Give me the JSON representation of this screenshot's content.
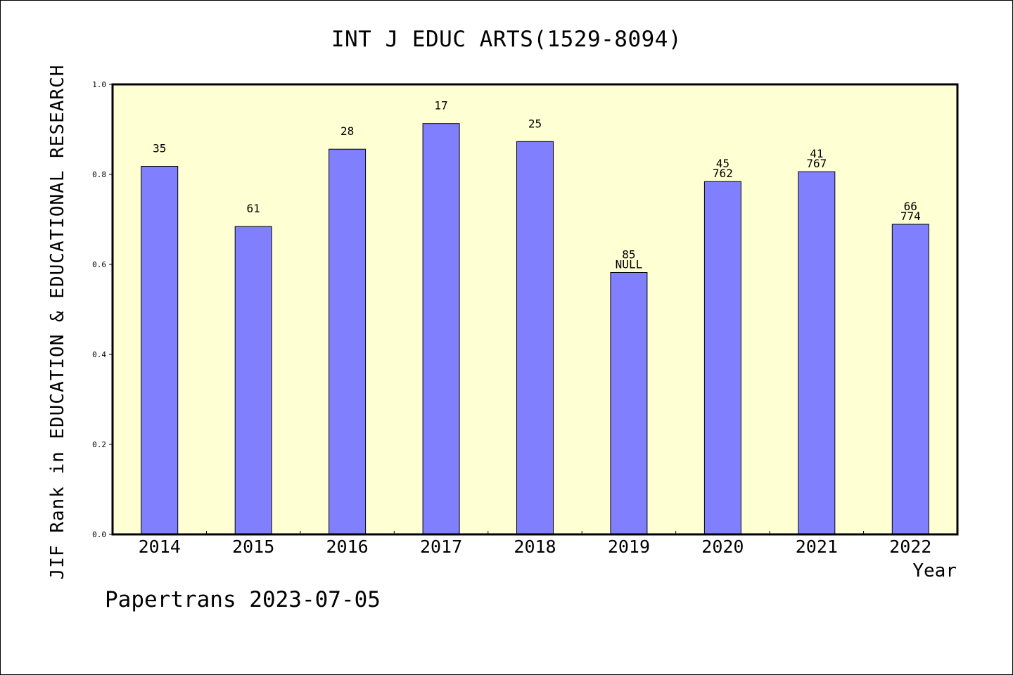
{
  "chart_data": {
    "type": "bar",
    "title": "INT J EDUC ARTS(1529-8094)",
    "xlabel": "Year",
    "ylabel": "JIF Rank in EDUCATION & EDUCATIONAL RESEARCH",
    "ylim": [
      0,
      1.0
    ],
    "yticks": [
      "0.0",
      "0.2",
      "0.4",
      "0.6",
      "0.8",
      "1.0"
    ],
    "categories": [
      "2014",
      "2015",
      "2016",
      "2017",
      "2018",
      "2019",
      "2020",
      "2021",
      "2022"
    ],
    "values": [
      0.818,
      0.684,
      0.856,
      0.913,
      0.873,
      0.582,
      0.784,
      0.806,
      0.689
    ],
    "top_labels": [
      "35",
      "61",
      "28",
      "17",
      "25",
      "85",
      "45",
      "41",
      "66"
    ],
    "second_labels": [
      "",
      "",
      "",
      "",
      "",
      "NULL",
      "762",
      "767",
      "774"
    ],
    "bar_color": "#8080ff",
    "plot_background": "#ffffd4",
    "grid": false
  },
  "footer": {
    "text": "Papertrans 2023-07-05"
  }
}
